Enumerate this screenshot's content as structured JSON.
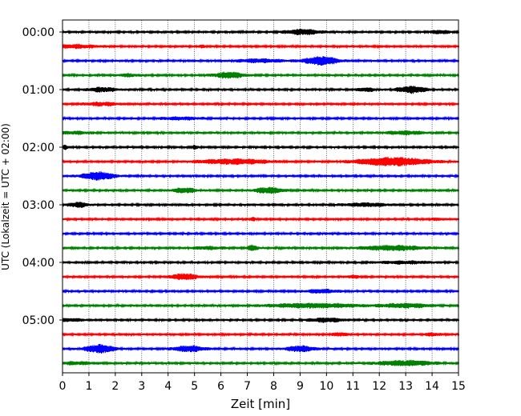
{
  "chart_data": {
    "type": "line",
    "title": "",
    "xlabel": "Zeit  [min]",
    "ylabel": "UTC (Lokalzeit = UTC + 02:00)",
    "xlim": [
      0,
      15
    ],
    "x_ticks": [
      0,
      1,
      2,
      3,
      4,
      5,
      6,
      7,
      8,
      9,
      10,
      11,
      12,
      13,
      14,
      15
    ],
    "x_grid": "dotted vertical lines at each minute",
    "y_tick_labels": [
      "00:00",
      "01:00",
      "02:00",
      "03:00",
      "04:00",
      "05:00"
    ],
    "trace_interval_minutes": 15,
    "color_cycle": [
      "#000000",
      "#ff0000",
      "#0000ff",
      "#008000"
    ],
    "traces": [
      {
        "start": "00:00",
        "bursts": [
          {
            "t": 9.1,
            "w": 1.5,
            "a": 3
          },
          {
            "t": 14.3,
            "w": 0.8,
            "a": 2
          }
        ]
      },
      {
        "start": "00:15",
        "bursts": [
          {
            "t": 0.5,
            "w": 2,
            "a": 2
          },
          {
            "t": 5.3,
            "w": 0.3,
            "a": 1.5
          }
        ]
      },
      {
        "start": "00:30",
        "bursts": [
          {
            "t": 9.8,
            "w": 1.4,
            "a": 5
          },
          {
            "t": 7.5,
            "w": 2,
            "a": 2
          }
        ]
      },
      {
        "start": "00:45",
        "bursts": [
          {
            "t": 6.3,
            "w": 1.3,
            "a": 3.5
          },
          {
            "t": 2.5,
            "w": 1,
            "a": 1.5
          }
        ]
      },
      {
        "start": "01:00",
        "bursts": [
          {
            "t": 13.2,
            "w": 1.2,
            "a": 4
          },
          {
            "t": 1.5,
            "w": 1.3,
            "a": 2.5
          },
          {
            "t": 11.5,
            "w": 0.8,
            "a": 2
          }
        ]
      },
      {
        "start": "01:15",
        "bursts": [
          {
            "t": 1.5,
            "w": 1.5,
            "a": 2
          }
        ]
      },
      {
        "start": "01:30",
        "bursts": [
          {
            "t": 4.5,
            "w": 2,
            "a": 1.5
          }
        ]
      },
      {
        "start": "01:45",
        "bursts": [
          {
            "t": 0.5,
            "w": 1.5,
            "a": 1.5
          },
          {
            "t": 13,
            "w": 1.8,
            "a": 2
          }
        ]
      },
      {
        "start": "02:00",
        "bursts": [
          {
            "t": 5,
            "w": 0.2,
            "a": 2.5
          },
          {
            "t": 0.1,
            "w": 0.2,
            "a": 2.5
          }
        ]
      },
      {
        "start": "02:15",
        "bursts": [
          {
            "t": 12.5,
            "w": 3,
            "a": 5
          },
          {
            "t": 6.5,
            "w": 3,
            "a": 3
          }
        ]
      },
      {
        "start": "02:30",
        "bursts": [
          {
            "t": 1.35,
            "w": 1.35,
            "a": 5
          }
        ]
      },
      {
        "start": "02:45",
        "bursts": [
          {
            "t": 4.6,
            "w": 1,
            "a": 3
          },
          {
            "t": 7.8,
            "w": 1.2,
            "a": 3.5
          }
        ]
      },
      {
        "start": "03:00",
        "bursts": [
          {
            "t": 0.6,
            "w": 0.8,
            "a": 3
          },
          {
            "t": 11.5,
            "w": 2,
            "a": 2
          }
        ]
      },
      {
        "start": "03:15",
        "bursts": [
          {
            "t": 7.2,
            "w": 0.2,
            "a": 2
          },
          {
            "t": 14.2,
            "w": 0.5,
            "a": 1.5
          }
        ]
      },
      {
        "start": "03:30",
        "bursts": []
      },
      {
        "start": "03:45",
        "bursts": [
          {
            "t": 12.5,
            "w": 2.5,
            "a": 3
          },
          {
            "t": 7.2,
            "w": 0.5,
            "a": 3
          },
          {
            "t": 5.5,
            "w": 1.5,
            "a": 1.5
          }
        ]
      },
      {
        "start": "04:00",
        "bursts": [
          {
            "t": 13,
            "w": 2.5,
            "a": 1.5
          }
        ]
      },
      {
        "start": "04:15",
        "bursts": [
          {
            "t": 4.6,
            "w": 1.2,
            "a": 3.5
          },
          {
            "t": 11,
            "w": 0.6,
            "a": 1.5
          }
        ]
      },
      {
        "start": "04:30",
        "bursts": [
          {
            "t": 9.8,
            "w": 1.4,
            "a": 2
          }
        ]
      },
      {
        "start": "04:45",
        "bursts": [
          {
            "t": 9.5,
            "w": 4,
            "a": 2.5
          },
          {
            "t": 13,
            "w": 2,
            "a": 2.5
          }
        ]
      },
      {
        "start": "05:00",
        "bursts": [
          {
            "t": 10,
            "w": 1.5,
            "a": 2.5
          },
          {
            "t": 0.3,
            "w": 1.5,
            "a": 1.5
          }
        ]
      },
      {
        "start": "05:15",
        "bursts": [
          {
            "t": 10.5,
            "w": 0.6,
            "a": 2
          },
          {
            "t": 14,
            "w": 0.8,
            "a": 1.5
          }
        ]
      },
      {
        "start": "05:30",
        "bursts": [
          {
            "t": 1.4,
            "w": 1.2,
            "a": 5
          },
          {
            "t": 4.8,
            "w": 1.3,
            "a": 3.5
          },
          {
            "t": 9,
            "w": 1.2,
            "a": 3.5
          }
        ]
      },
      {
        "start": "05:45",
        "bursts": [
          {
            "t": 13,
            "w": 2.5,
            "a": 3
          },
          {
            "t": 0.5,
            "w": 2,
            "a": 1.5
          }
        ]
      }
    ]
  }
}
